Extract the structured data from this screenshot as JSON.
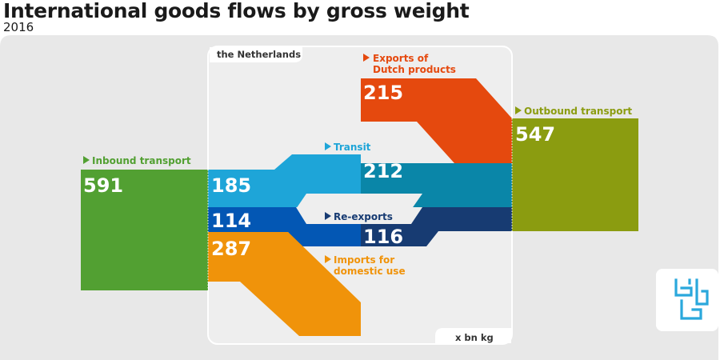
{
  "title": "International goods flows by gross weight",
  "subtitle": "2016",
  "region_label": "the Netherlands",
  "unit_label": "x bn kg",
  "colors": {
    "inbound": "#52a032",
    "outbound": "#8b9c10",
    "exports": "#e5490e",
    "transit_light": "#1ea5d8",
    "transit_dark": "#0a86a8",
    "reexports_light": "#0357b4",
    "reexports_dark": "#173b72",
    "imports": "#f0930a",
    "panel": "#e8e8e8"
  },
  "flows": {
    "inbound": {
      "label": "Inbound transport",
      "value": "591"
    },
    "outbound": {
      "label": "Outbound transport",
      "value": "547"
    },
    "exports": {
      "label_line1": "Exports of",
      "label_line2": "Dutch products",
      "value": "215"
    },
    "transit": {
      "label": "Transit",
      "value_in": "185",
      "value_out": "212"
    },
    "reexports": {
      "label": "Re-exports",
      "value_in": "114",
      "value_out": "116"
    },
    "imports": {
      "label_line1": "Imports for",
      "label_line2": "domestic use",
      "value": "287"
    }
  },
  "logo": {
    "name": "cbs"
  }
}
